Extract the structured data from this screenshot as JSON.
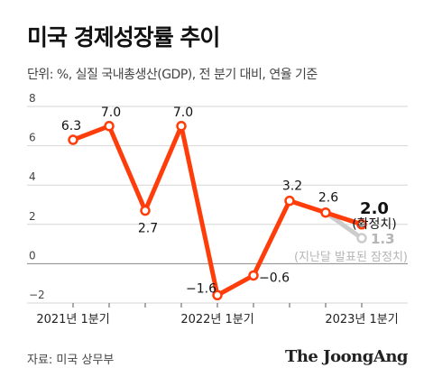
{
  "title": "미국 경제성장률 추이",
  "subtitle": "단위: %, 실질 국내총생산(GDP), 전 분기 대비, 연율 기준",
  "source": "자료: 미국 상무부",
  "logo": "The JoongAng",
  "colors": {
    "line": "#ff3d0a",
    "prelim": "#cccccc",
    "prelim_label": "#b5b5b5",
    "grid": "#d6d6d6",
    "zero": "#888888",
    "axis_text": "#444444"
  },
  "chart_data": {
    "type": "line",
    "title": "미국 경제성장률 추이",
    "ylabel": "",
    "ylim": [
      -2,
      8
    ],
    "yticks": [
      -2,
      0,
      2,
      4,
      6,
      8
    ],
    "ytick_labels": [
      "−2",
      "0",
      "2",
      "4",
      "6",
      "8"
    ],
    "xtick_labels": [
      {
        "label": "2021년 1분기",
        "index": 0
      },
      {
        "label": "2022년 1분기",
        "index": 4
      },
      {
        "label": "2023년 1분기",
        "index": 8
      }
    ],
    "grid": true,
    "series": [
      {
        "name": "",
        "x": [
          0,
          1,
          2,
          3,
          4,
          5,
          6,
          7,
          8
        ],
        "values": [
          6.3,
          7.0,
          2.7,
          7.0,
          -1.6,
          -0.6,
          3.2,
          2.6,
          2.0
        ],
        "labels": [
          "6.3",
          "7.0",
          "2.7",
          "7.0",
          "−1.6",
          "−0.6",
          "3.2",
          "2.6",
          "2.0"
        ]
      }
    ],
    "preliminary": {
      "index": 8,
      "value": 1.3,
      "label": "1.3"
    },
    "annotations": {
      "final_note": "(확정치)",
      "prelim_note": "(지난달 발표된 잠정치)"
    }
  }
}
